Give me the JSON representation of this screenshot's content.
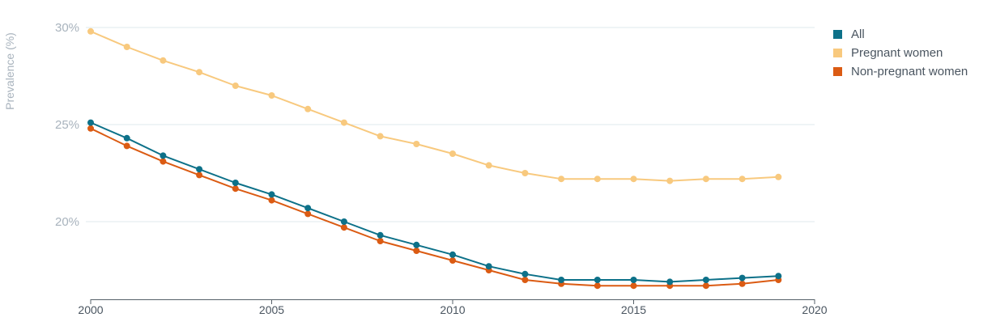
{
  "chart_data": {
    "type": "line",
    "title": "",
    "xlabel": "",
    "ylabel": "Prevalence (%)",
    "x": [
      2000,
      2001,
      2002,
      2003,
      2004,
      2005,
      2006,
      2007,
      2008,
      2009,
      2010,
      2011,
      2012,
      2013,
      2014,
      2015,
      2016,
      2017,
      2018,
      2019
    ],
    "xlim": [
      2000,
      2020
    ],
    "ylim": [
      16,
      30
    ],
    "x_ticks": [
      "2000",
      "2005",
      "2010",
      "2015",
      "2020"
    ],
    "y_ticks": [
      {
        "value": 20,
        "label": "20%"
      },
      {
        "value": 25,
        "label": "25%"
      },
      {
        "value": 30,
        "label": "30%"
      }
    ],
    "grid": "horizontal",
    "legend_position": "top-right",
    "series": [
      {
        "name": "All",
        "color": "#0d7189",
        "values": [
          25.1,
          24.3,
          23.4,
          22.7,
          22.0,
          21.4,
          20.7,
          20.0,
          19.3,
          18.8,
          18.3,
          17.7,
          17.3,
          17.0,
          17.0,
          17.0,
          16.9,
          17.0,
          17.1,
          17.2
        ]
      },
      {
        "name": "Pregnant women",
        "color": "#f8c97e",
        "values": [
          29.8,
          29.0,
          28.3,
          27.7,
          27.0,
          26.5,
          25.8,
          25.1,
          24.4,
          24.0,
          23.5,
          22.9,
          22.5,
          22.2,
          22.2,
          22.2,
          22.1,
          22.2,
          22.2,
          22.3
        ]
      },
      {
        "name": "Non-pregnant women",
        "color": "#db5b13",
        "values": [
          24.8,
          23.9,
          23.1,
          22.4,
          21.7,
          21.1,
          20.4,
          19.7,
          19.0,
          18.5,
          18.0,
          17.5,
          17.0,
          16.8,
          16.7,
          16.7,
          16.7,
          16.7,
          16.8,
          17.0
        ]
      }
    ]
  }
}
